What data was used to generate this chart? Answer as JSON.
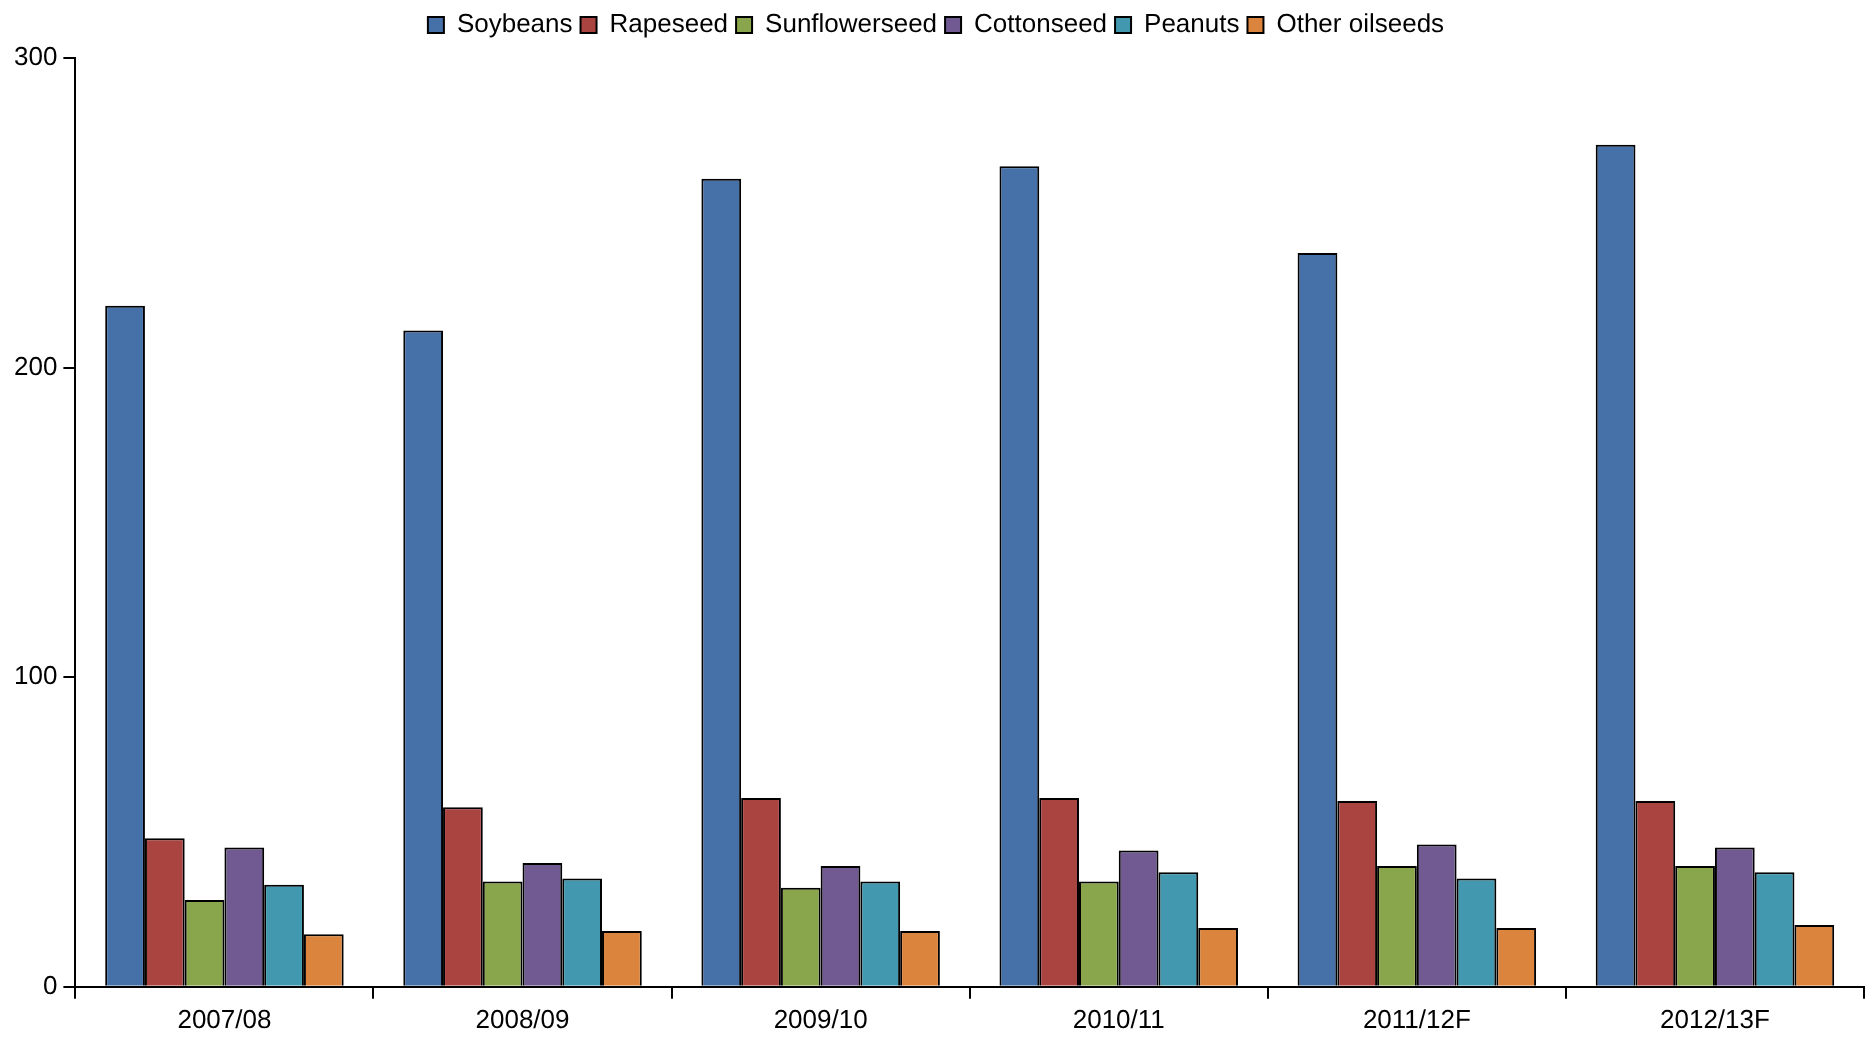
{
  "chart_data": {
    "type": "bar",
    "categories": [
      "2007/08",
      "2008/09",
      "2009/10",
      "2010/11",
      "2011/12F",
      "2012/13F"
    ],
    "series": [
      {
        "name": "Soybeans",
        "color": "#4670a8",
        "values": [
          220,
          212,
          261,
          265,
          237,
          272
        ]
      },
      {
        "name": "Rapeseed",
        "color": "#a94441",
        "values": [
          48,
          58,
          61,
          61,
          60,
          60
        ]
      },
      {
        "name": "Sunflowerseed",
        "color": "#8aa64c",
        "values": [
          28,
          34,
          32,
          34,
          39,
          39
        ]
      },
      {
        "name": "Cottonseed",
        "color": "#705a91",
        "values": [
          45,
          40,
          39,
          44,
          46,
          45
        ]
      },
      {
        "name": "Peanuts",
        "color": "#4198af",
        "values": [
          33,
          35,
          34,
          37,
          35,
          37
        ]
      },
      {
        "name": "Other oilseeds",
        "color": "#db843d",
        "values": [
          17,
          18,
          18,
          19,
          19,
          20
        ]
      }
    ],
    "ylim": [
      0,
      300
    ],
    "yticks": [
      0,
      100,
      200,
      300
    ],
    "grid": false,
    "legend": "top"
  }
}
